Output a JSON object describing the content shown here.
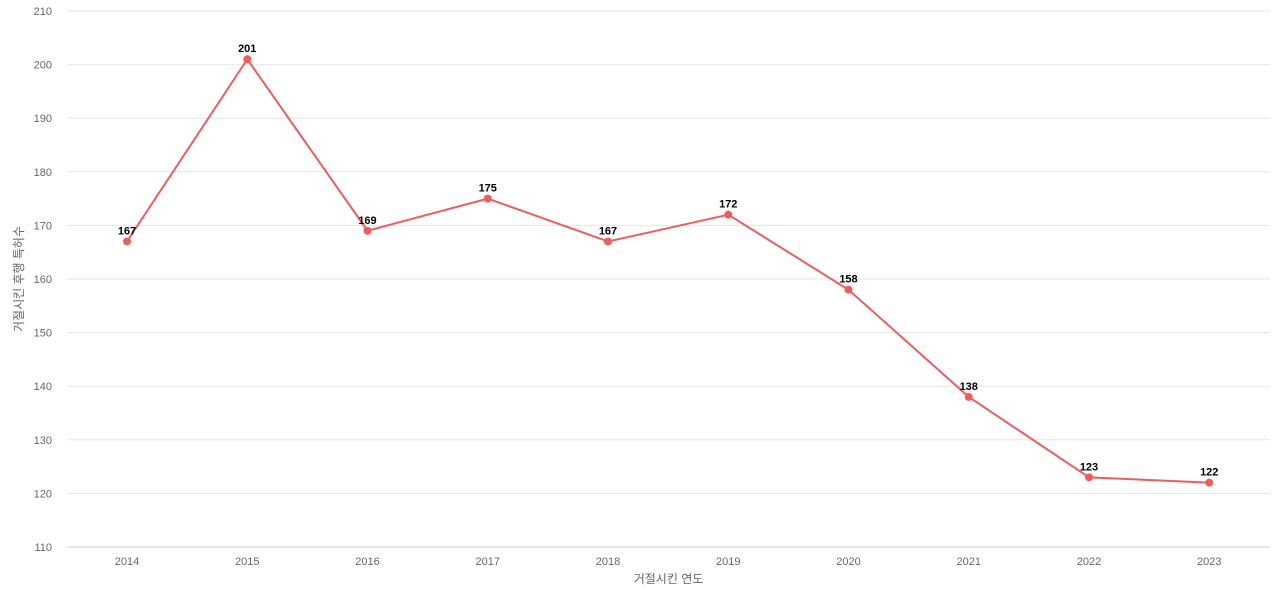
{
  "chart_data": {
    "type": "line",
    "title": "",
    "xlabel": "거절시킨 연도",
    "ylabel": "거절시킨 후행 특허수",
    "ylim": [
      110,
      210
    ],
    "y_ticks": [
      110,
      120,
      130,
      140,
      150,
      160,
      170,
      180,
      190,
      200,
      210
    ],
    "categories": [
      "2014",
      "2015",
      "2016",
      "2017",
      "2018",
      "2019",
      "2020",
      "2021",
      "2022",
      "2023"
    ],
    "series": [
      {
        "values": [
          167,
          201,
          169,
          175,
          167,
          172,
          158,
          138,
          123,
          122
        ],
        "color": "#ee5d5d"
      }
    ],
    "grid": true,
    "legend": "none"
  }
}
